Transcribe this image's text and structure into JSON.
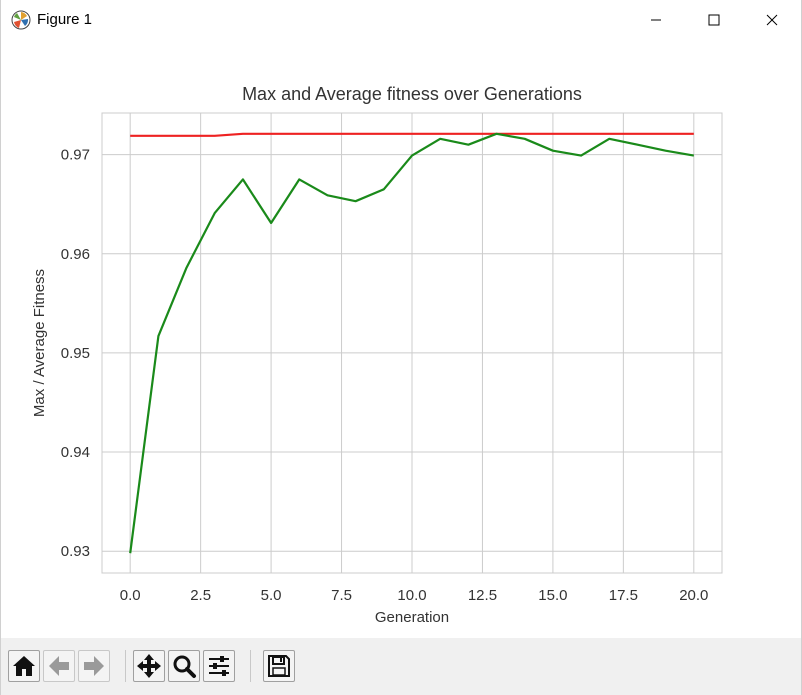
{
  "window": {
    "title": "Figure 1",
    "icon": "matplotlib-logo-icon",
    "controls": [
      "minimize-icon",
      "maximize-icon",
      "close-icon"
    ]
  },
  "toolbar": {
    "buttons": [
      "home-icon",
      "back-arrow-icon",
      "forward-arrow-icon",
      "pan-icon",
      "zoom-icon",
      "configure-subplots-icon",
      "save-icon"
    ]
  },
  "chart_data": {
    "type": "line",
    "title": "Max and Average fitness over Generations",
    "xlabel": "Generation",
    "ylabel": "Max / Average Fitness",
    "xlim": [
      -1,
      21
    ],
    "ylim": [
      0.9278,
      0.9742
    ],
    "xticks": [
      0.0,
      2.5,
      5.0,
      7.5,
      10.0,
      12.5,
      15.0,
      17.5,
      20.0
    ],
    "xtick_labels": [
      "0.0",
      "2.5",
      "5.0",
      "7.5",
      "10.0",
      "12.5",
      "15.0",
      "17.5",
      "20.0"
    ],
    "yticks": [
      0.93,
      0.94,
      0.95,
      0.96,
      0.97
    ],
    "ytick_labels": [
      "0.93",
      "0.94",
      "0.95",
      "0.96",
      "0.97"
    ],
    "grid": true,
    "x": [
      0,
      1,
      2,
      3,
      4,
      5,
      6,
      7,
      8,
      9,
      10,
      11,
      12,
      13,
      14,
      15,
      16,
      17,
      18,
      19,
      20
    ],
    "series": [
      {
        "color": "#ee2222",
        "values": [
          0.9719,
          0.9719,
          0.9719,
          0.9719,
          0.9721,
          0.9721,
          0.9721,
          0.9721,
          0.9721,
          0.9721,
          0.9721,
          0.9721,
          0.9721,
          0.9721,
          0.9721,
          0.9721,
          0.9721,
          0.9721,
          0.9721,
          0.9721,
          0.9721
        ]
      },
      {
        "color": "#1a8a1a",
        "values": [
          0.9298,
          0.9517,
          0.9586,
          0.9641,
          0.9675,
          0.9631,
          0.9675,
          0.9659,
          0.9653,
          0.9665,
          0.9699,
          0.9716,
          0.971,
          0.9721,
          0.9716,
          0.9704,
          0.9699,
          0.9716,
          0.971,
          0.9704,
          0.9699
        ]
      }
    ]
  }
}
